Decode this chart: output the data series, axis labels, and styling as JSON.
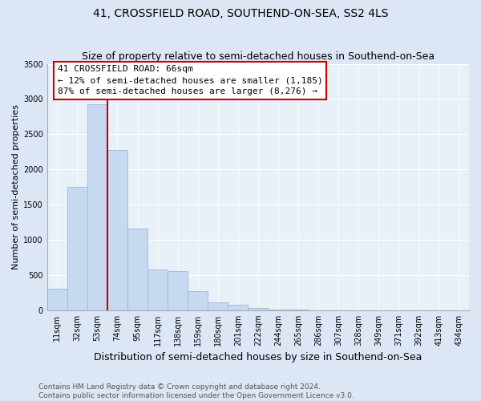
{
  "title": "41, CROSSFIELD ROAD, SOUTHEND-ON-SEA, SS2 4LS",
  "subtitle": "Size of property relative to semi-detached houses in Southend-on-Sea",
  "xlabel": "Distribution of semi-detached houses by size in Southend-on-Sea",
  "ylabel": "Number of semi-detached properties",
  "footer_line1": "Contains HM Land Registry data © Crown copyright and database right 2024.",
  "footer_line2": "Contains public sector information licensed under the Open Government Licence v3.0.",
  "annotation_title": "41 CROSSFIELD ROAD: 66sqm",
  "annotation_line1": "← 12% of semi-detached houses are smaller (1,185)",
  "annotation_line2": "87% of semi-detached houses are larger (8,276) →",
  "bar_labels": [
    "11sqm",
    "32sqm",
    "53sqm",
    "74sqm",
    "95sqm",
    "117sqm",
    "138sqm",
    "159sqm",
    "180sqm",
    "201sqm",
    "222sqm",
    "244sqm",
    "265sqm",
    "286sqm",
    "307sqm",
    "328sqm",
    "349sqm",
    "371sqm",
    "392sqm",
    "413sqm",
    "434sqm"
  ],
  "bar_values": [
    300,
    1750,
    2920,
    2280,
    1160,
    580,
    560,
    270,
    110,
    80,
    30,
    10,
    5,
    2,
    1,
    0,
    0,
    0,
    0,
    0,
    0
  ],
  "bar_color": "#c6d9f0",
  "bar_edge_color": "#9ab8d8",
  "vline_x_index": 2,
  "vline_color": "#cc0000",
  "annotation_box_edgecolor": "#cc0000",
  "figure_bg": "#dce6f5",
  "axes_bg": "#e8f0f8",
  "ylim": [
    0,
    3500
  ],
  "yticks": [
    0,
    500,
    1000,
    1500,
    2000,
    2500,
    3000,
    3500
  ],
  "title_fontsize": 10,
  "subtitle_fontsize": 9,
  "ylabel_fontsize": 8,
  "xlabel_fontsize": 9,
  "tick_fontsize": 7,
  "footer_fontsize": 6.5,
  "annotation_fontsize": 8
}
